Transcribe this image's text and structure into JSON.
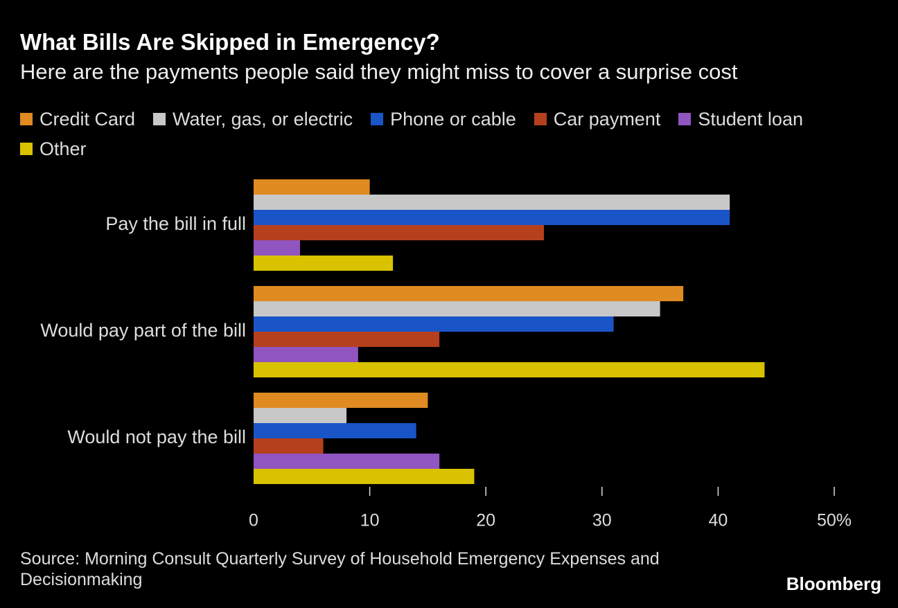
{
  "chart_data": {
    "type": "bar",
    "horizontal": true,
    "title": "What Bills Are Skipped in Emergency?",
    "subtitle": "Here are the payments people said they might miss to cover a surprise cost",
    "categories": [
      "Pay the bill in full",
      "Would pay part of the bill",
      "Would not pay the bill"
    ],
    "series": [
      {
        "name": "Credit Card",
        "color": "#e08a22",
        "values": [
          10,
          37,
          15
        ]
      },
      {
        "name": "Water, gas, or electric",
        "color": "#c8c8c8",
        "values": [
          41,
          35,
          8
        ]
      },
      {
        "name": "Phone or cable",
        "color": "#1a55c8",
        "values": [
          41,
          31,
          14
        ]
      },
      {
        "name": "Car payment",
        "color": "#b5401e",
        "values": [
          25,
          16,
          6
        ]
      },
      {
        "name": "Student loan",
        "color": "#9055c0",
        "values": [
          4,
          9,
          16
        ]
      },
      {
        "name": "Other",
        "color": "#d9c200",
        "values": [
          12,
          44,
          19
        ]
      }
    ],
    "xlim": [
      0,
      50
    ],
    "xticks": [
      0,
      10,
      20,
      30,
      40,
      {
        "value": 50,
        "label": "50%"
      }
    ],
    "source": "Source: Morning Consult Quarterly Survey of Household Emergency Expenses and Decisionmaking",
    "brand": "Bloomberg"
  }
}
